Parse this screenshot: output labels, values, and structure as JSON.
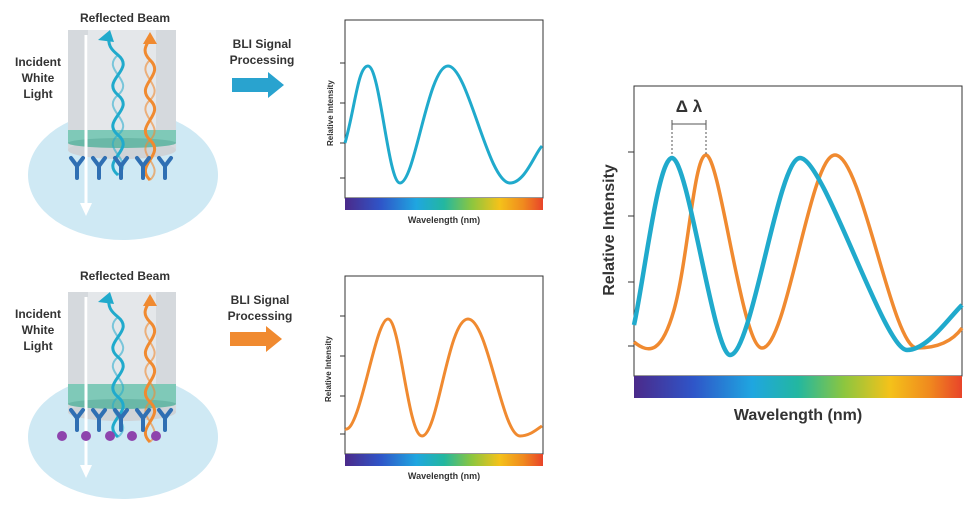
{
  "panels": [
    {
      "reflected_beam": "Reflected Beam",
      "incident_label": [
        "Incident",
        "White",
        "Light"
      ],
      "processing_label": [
        "BLI Signal",
        "Processing"
      ],
      "arrow_color": "#29a3cf",
      "signal_color": "#20aacc",
      "plot": {
        "ylabel": "Relative Intensity",
        "xlabel": "Wavelength (nm)"
      }
    },
    {
      "reflected_beam": "Reflected Beam",
      "incident_label": [
        "Incident",
        "White",
        "Light"
      ],
      "processing_label": [
        "BLI Signal",
        "Processing"
      ],
      "arrow_color": "#f08a30",
      "signal_color": "#f08a30",
      "plot": {
        "ylabel": "Relative Intensity",
        "xlabel": "Wavelength (nm)"
      }
    }
  ],
  "comparison_plot": {
    "shift_label": "Δ λ",
    "ylabel": "Relative Intensity",
    "xlabel": "Wavelength (nm)"
  },
  "colors": {
    "blue_beam": "#20aacc",
    "orange_beam": "#f08a30",
    "droplet": "#cfe9f4",
    "sensor_tip": "#e6e8ea",
    "biolayer": "#7fc9b8",
    "antibody": "#2f6fb3",
    "analyte": "#8e44ad",
    "spectrum": [
      "#4b2a8a",
      "#2f55c8",
      "#1fa6e0",
      "#23b7a0",
      "#8cc63f",
      "#f4c21a",
      "#f08a1e",
      "#e8442a"
    ]
  }
}
